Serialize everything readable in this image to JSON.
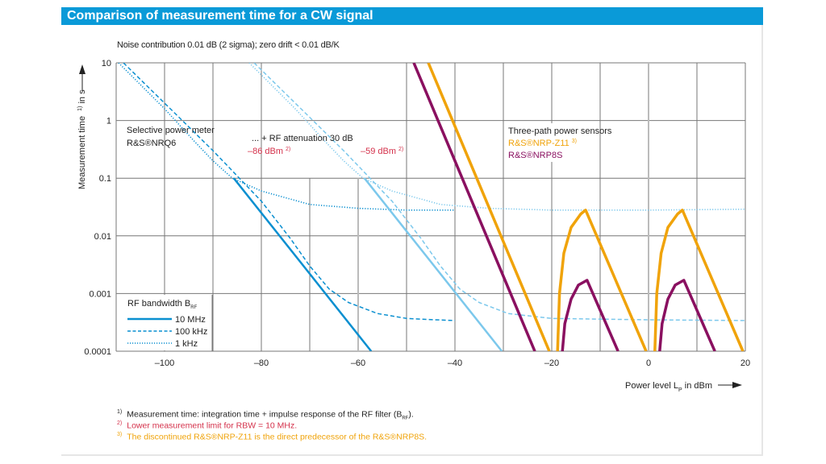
{
  "header": {
    "title": "Comparison of measurement time for a CW signal"
  },
  "subtitle": "Noise contribution 0.01 dB (2 sigma); zero drift < 0.01 dB/K",
  "colors": {
    "title_bar": "#0a9ad8",
    "nrq6": "#0a8fd0",
    "nrq6_att": "#7cc8ec",
    "nrpz11": "#f0a30a",
    "nrp8s": "#8a1060",
    "limit_text": "#d4304a",
    "grid": "#777777"
  },
  "annotations": {
    "nrq6_title": "Selective power meter",
    "nrq6_name": "R&S®NRQ6",
    "att_label": "... + RF attenuation 30 dB",
    "limit_1": "–86 dBm",
    "limit_1_sup": "2)",
    "limit_2": "–59 dBm",
    "limit_2_sup": "2)",
    "three_path_title": "Three-path power sensors",
    "nrpz11": "R&S®NRP-Z11",
    "nrpz11_sup": "3)",
    "nrp8s": "R&S®NRP8S"
  },
  "legend": {
    "title": "RF bandwidth B",
    "title_sub": "RF",
    "items": [
      {
        "label": "10 MHz",
        "style": "solid"
      },
      {
        "label": "100 kHz",
        "style": "dashed"
      },
      {
        "label": "1 kHz",
        "style": "dotted"
      }
    ]
  },
  "footnotes": [
    {
      "mark": "1)",
      "text": "Measurement time: integration time + impulse response of the RF filter (B",
      "sub": "RF",
      "tail": ")."
    },
    {
      "mark": "2)",
      "text": "Lower measurement limit for RBW = 10 MHz."
    },
    {
      "mark": "3)",
      "text": "The discontinued R&S®NRP-Z11 is the direct predecessor of the R&S®NRP8S."
    }
  ],
  "chart_data": {
    "type": "line",
    "title": "Comparison of measurement time for a CW signal",
    "xlabel": "Power level L_P in dBm",
    "ylabel": "Measurement time 1) in s",
    "xlim": [
      -110,
      20
    ],
    "ylim": [
      0.0001,
      10
    ],
    "yscale": "log",
    "grid": true,
    "xticks": [
      -100,
      -80,
      -60,
      -40,
      -20,
      0,
      20
    ],
    "xtick_labels": [
      "–100",
      "–80",
      "–60",
      "–40",
      "–20",
      "0",
      "20"
    ],
    "yticks": [
      10,
      1,
      0.1,
      0.01,
      0.001,
      0.0001
    ],
    "ytick_labels": [
      "10",
      "1",
      "0.1",
      "0.01",
      "0.001",
      "0.0001"
    ],
    "legend_position": "bottom-left",
    "series": [
      {
        "name": "R&S®NRQ6 10 MHz",
        "color_key": "nrq6",
        "style": "solid",
        "points": [
          [
            -85.7,
            0.1
          ],
          [
            -57.3,
            0.0001
          ]
        ]
      },
      {
        "name": "R&S®NRQ6 100 kHz",
        "color_key": "nrq6",
        "style": "dashed",
        "points": [
          [
            -108.5,
            10
          ],
          [
            -100,
            2
          ],
          [
            -90,
            0.3
          ],
          [
            -80,
            0.04
          ],
          [
            -74,
            0.009
          ],
          [
            -70,
            0.003
          ],
          [
            -66,
            0.0012
          ],
          [
            -62,
            0.0007
          ],
          [
            -56,
            0.00045
          ],
          [
            -50,
            0.00037
          ],
          [
            -44,
            0.00035
          ],
          [
            -40,
            0.00034
          ]
        ]
      },
      {
        "name": "R&S®NRQ6 1 kHz",
        "color_key": "nrq6",
        "style": "dotted",
        "points": [
          [
            -109.5,
            10
          ],
          [
            -100,
            1.6
          ],
          [
            -94,
            0.45
          ],
          [
            -90,
            0.2
          ],
          [
            -86,
            0.1
          ],
          [
            -80,
            0.06
          ],
          [
            -70,
            0.035
          ],
          [
            -60,
            0.03
          ],
          [
            -50,
            0.028
          ],
          [
            -40,
            0.028
          ]
        ]
      },
      {
        "name": "R&S®NRQ6 + 30 dB att. 10 MHz",
        "color_key": "nrq6_att",
        "style": "solid",
        "points": [
          [
            -58.7,
            0.1
          ],
          [
            -30.3,
            0.0001
          ]
        ]
      },
      {
        "name": "R&S®NRQ6 + 30 dB att. 100 kHz",
        "color_key": "nrq6_att",
        "style": "dashed",
        "points": [
          [
            -81.5,
            10
          ],
          [
            -73,
            2
          ],
          [
            -63,
            0.3
          ],
          [
            -53,
            0.04
          ],
          [
            -47,
            0.009
          ],
          [
            -43,
            0.003
          ],
          [
            -39,
            0.0012
          ],
          [
            -35,
            0.0007
          ],
          [
            -29,
            0.00045
          ],
          [
            -20,
            0.00037
          ],
          [
            0,
            0.00035
          ],
          [
            20,
            0.00034
          ]
        ]
      },
      {
        "name": "R&S®NRQ6 + 30 dB att. 1 kHz",
        "color_key": "nrq6_att",
        "style": "dotted",
        "points": [
          [
            -82.5,
            10
          ],
          [
            -73,
            1.6
          ],
          [
            -67,
            0.45
          ],
          [
            -63,
            0.2
          ],
          [
            -59,
            0.1
          ],
          [
            -53,
            0.06
          ],
          [
            -43,
            0.035
          ],
          [
            -33,
            0.03
          ],
          [
            -20,
            0.028
          ],
          [
            0,
            0.028
          ],
          [
            20,
            0.029
          ]
        ]
      },
      {
        "name": "R&S®NRP-Z11",
        "color_key": "nrpz11",
        "style": "solid",
        "segments": [
          [
            [
              -45.5,
              10
            ],
            [
              -20.5,
              0.0001
            ]
          ],
          [
            [
              -18.8,
              0.0001
            ],
            [
              -18.4,
              0.001
            ],
            [
              -17.5,
              0.005
            ],
            [
              -16,
              0.014
            ],
            [
              -14,
              0.024
            ],
            [
              -13,
              0.028
            ],
            [
              -0.5,
              0.0001
            ]
          ],
          [
            [
              1.3,
              0.0001
            ],
            [
              1.7,
              0.001
            ],
            [
              2.6,
              0.005
            ],
            [
              4,
              0.014
            ],
            [
              6,
              0.024
            ],
            [
              7,
              0.028
            ],
            [
              19.5,
              0.0001
            ]
          ]
        ]
      },
      {
        "name": "R&S®NRP8S",
        "color_key": "nrp8s",
        "style": "solid",
        "segments": [
          [
            [
              -48.5,
              10
            ],
            [
              -23.5,
              0.0001
            ]
          ],
          [
            [
              -17.8,
              0.0001
            ],
            [
              -17.3,
              0.0003
            ],
            [
              -16,
              0.0008
            ],
            [
              -14.5,
              0.0014
            ],
            [
              -12.7,
              0.0017
            ],
            [
              -6.3,
              0.0001
            ]
          ],
          [
            [
              2.3,
              0.0001
            ],
            [
              2.8,
              0.0003
            ],
            [
              4,
              0.0008
            ],
            [
              5.5,
              0.0014
            ],
            [
              7.3,
              0.0017
            ],
            [
              13.7,
              0.0001
            ]
          ]
        ]
      }
    ]
  }
}
